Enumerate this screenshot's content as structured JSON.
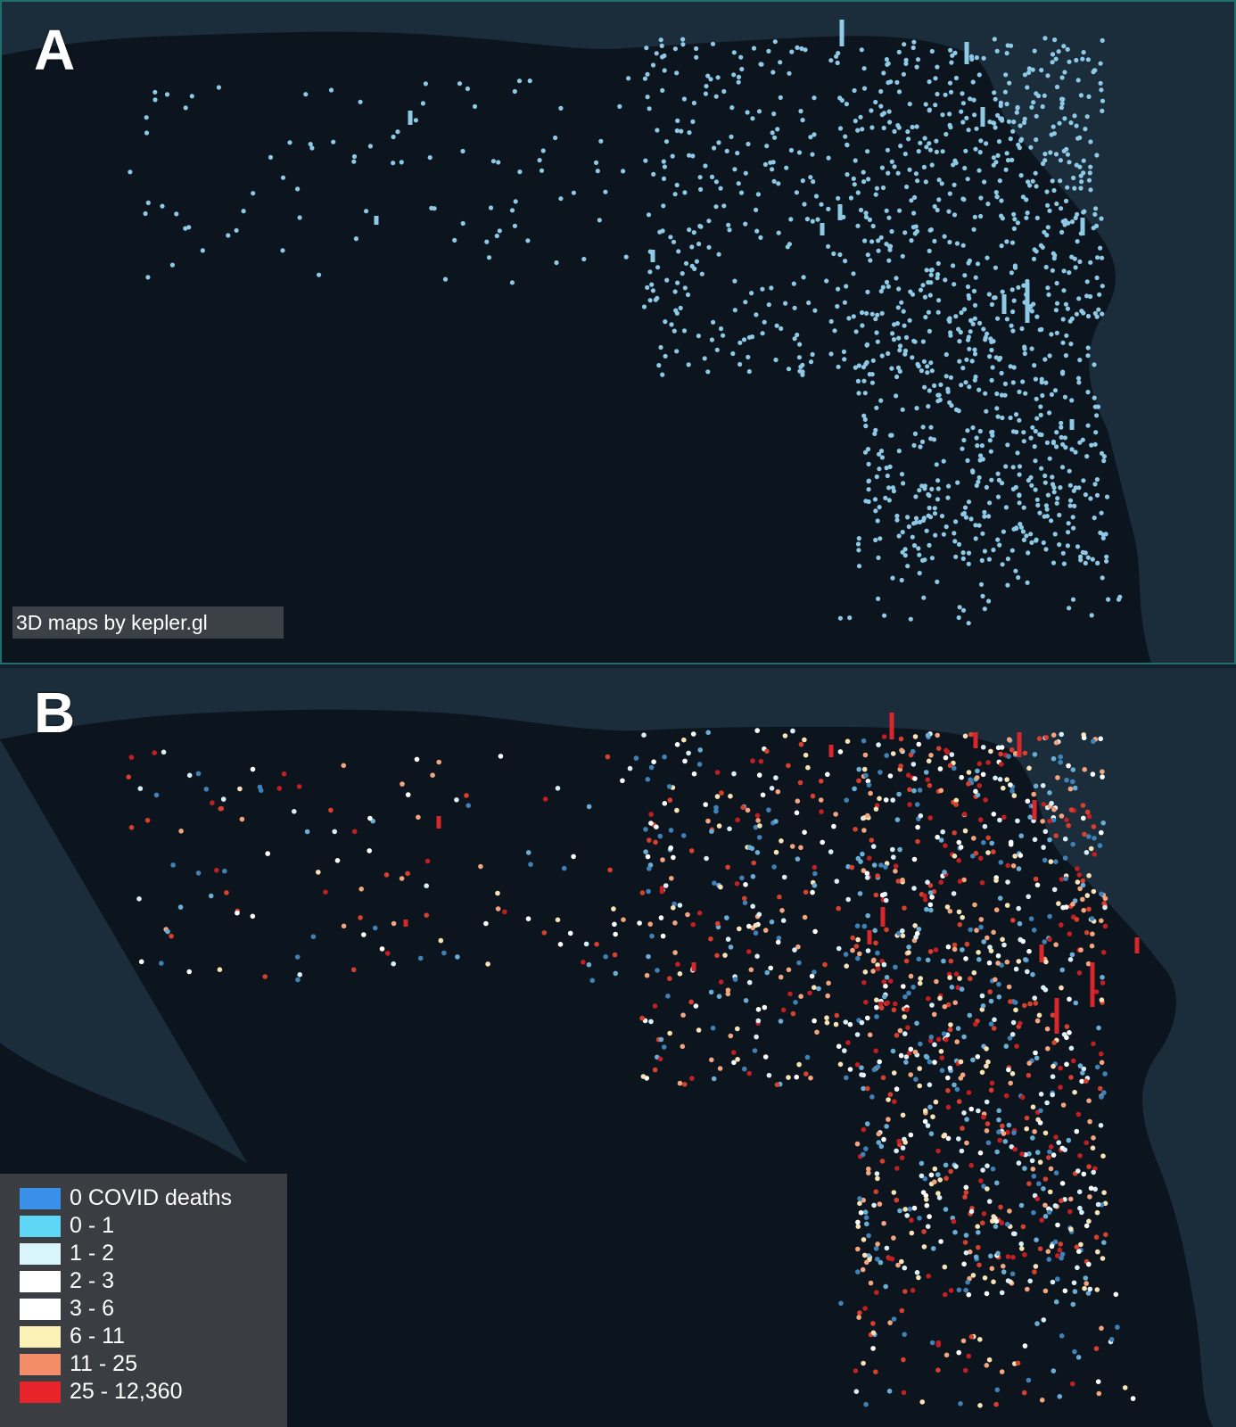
{
  "panel_a": {
    "letter": "A",
    "credit": "3D maps by kepler.gl",
    "hex_color": "#8ec9e6"
  },
  "panel_b": {
    "letter": "B",
    "legend": [
      {
        "label": "0 COVID deaths",
        "color": "#3a8fe8"
      },
      {
        "label": "0 - 1",
        "color": "#5fd6f5"
      },
      {
        "label": "1 - 2",
        "color": "#d9f4fb"
      },
      {
        "label": "2 - 3",
        "color": "#ffffff"
      },
      {
        "label": "3 - 6",
        "color": "#ffffff"
      },
      {
        "label": "6 - 11",
        "color": "#fbf0b6"
      },
      {
        "label": "11 - 25",
        "color": "#f28c69"
      },
      {
        "label": "25 - 12,360",
        "color": "#e8242b"
      }
    ]
  },
  "colors": {
    "land": "#0c141d",
    "water": "#1b2c3a",
    "point_palette_b": [
      "#3f82b8",
      "#6aaed6",
      "#d9eef6",
      "#ffffff",
      "#f7e3b5",
      "#f3a580",
      "#d8402e",
      "#c21f22"
    ]
  }
}
